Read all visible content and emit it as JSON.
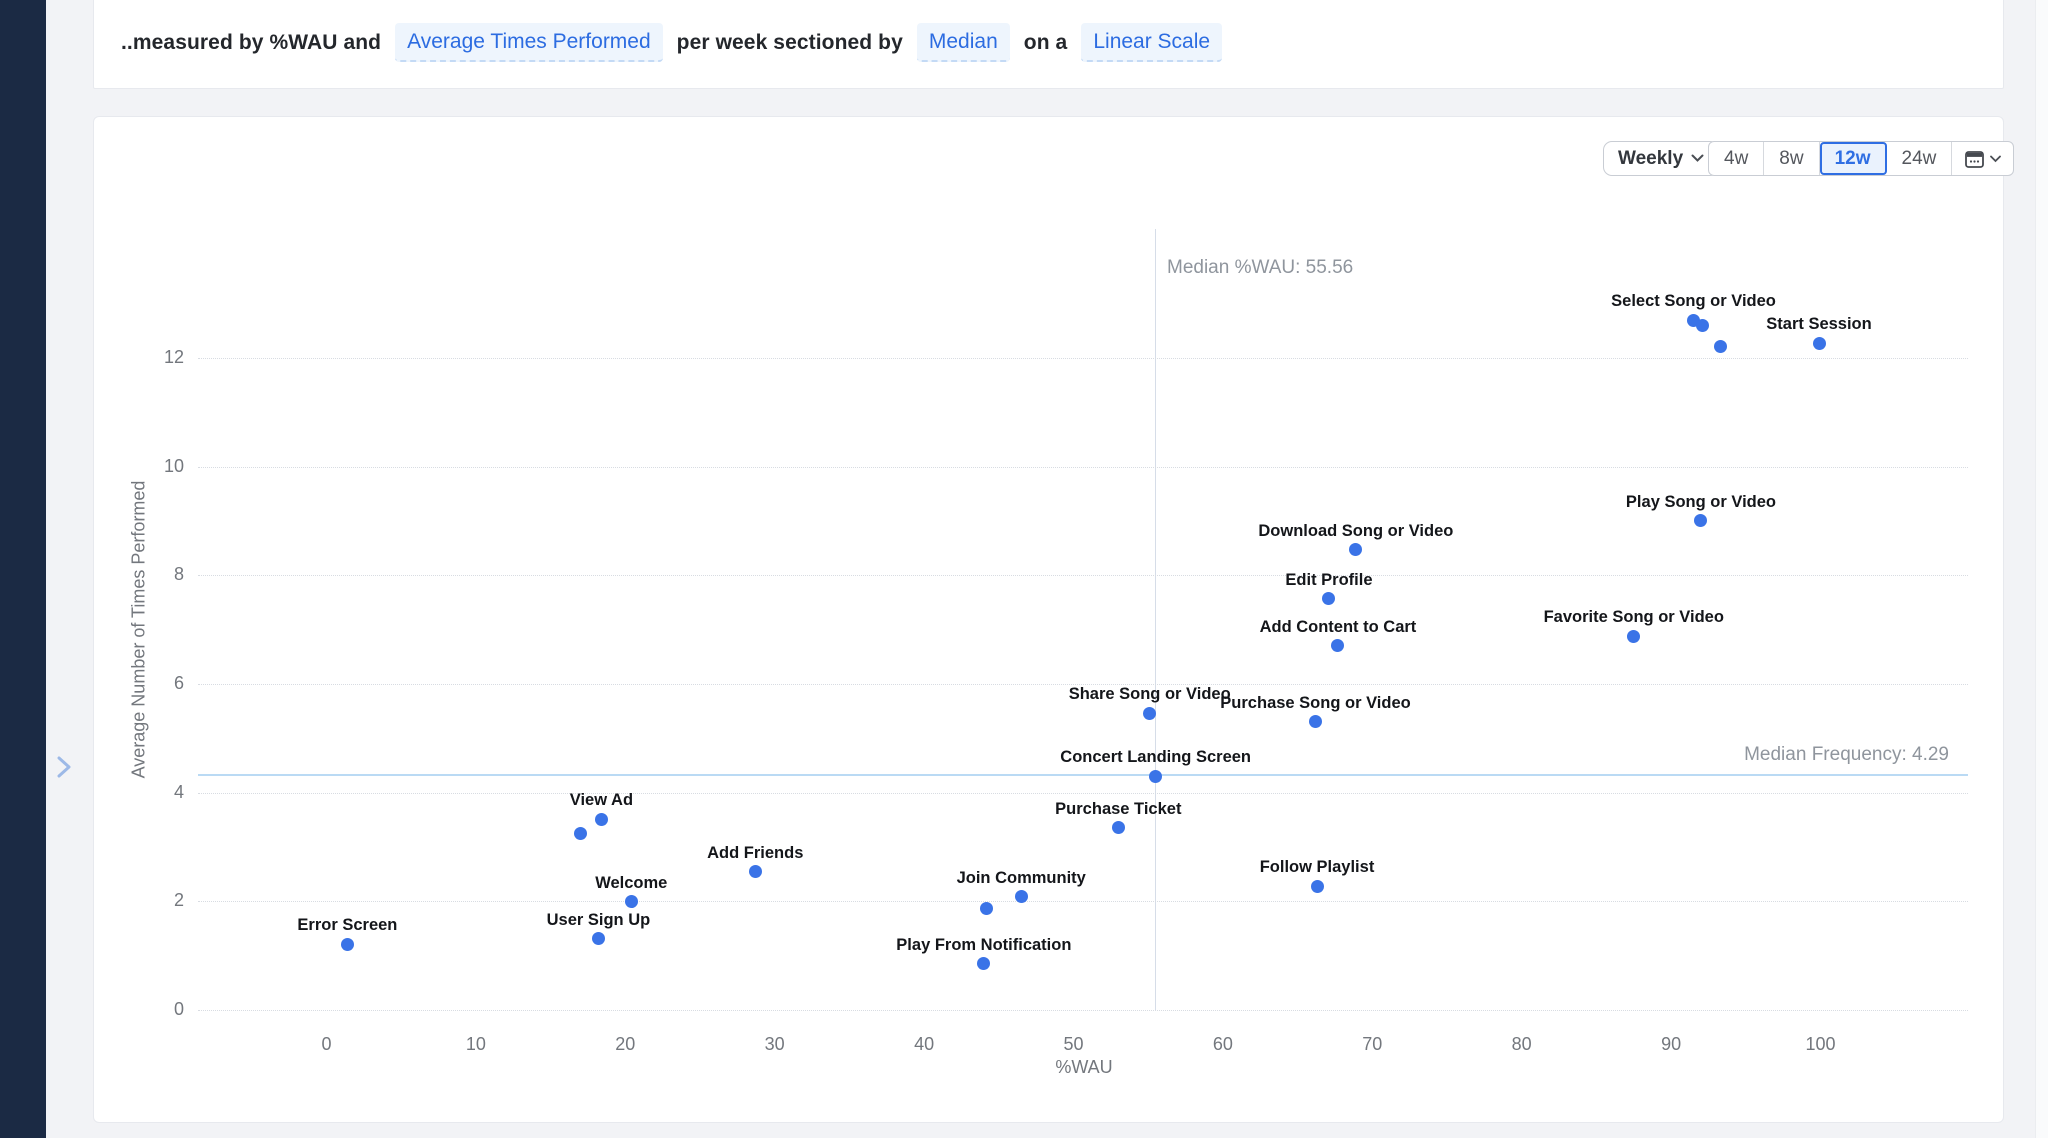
{
  "colors": {
    "accent_blue": "#2c6ce1",
    "dot_blue": "#3a73e7",
    "sidebar_navy": "#1b2a44",
    "median_line_blue": "#badaf4",
    "page_background": "#f2f3f6"
  },
  "query_bar": {
    "parts": [
      {
        "type": "text",
        "value": "..measured by %WAU and"
      },
      {
        "type": "token",
        "value": "Average Times Performed"
      },
      {
        "type": "text",
        "value": "per week sectioned by"
      },
      {
        "type": "token",
        "value": "Median"
      },
      {
        "type": "text",
        "value": "on a"
      },
      {
        "type": "token",
        "value": "Linear Scale"
      }
    ]
  },
  "controls": {
    "interval_label": "Weekly",
    "ranges": [
      "4w",
      "8w",
      "12w",
      "24w"
    ],
    "selected_range": "12w"
  },
  "chart_data": {
    "type": "scatter",
    "xlabel": "%WAU",
    "ylabel": "Average Number of Times Performed",
    "x_ticks": [
      0,
      10,
      20,
      30,
      40,
      50,
      60,
      70,
      80,
      90,
      100
    ],
    "y_ticks": [
      0,
      2,
      4,
      6,
      8,
      10,
      12
    ],
    "xlim": [
      0,
      100
    ],
    "ylim": [
      0,
      12
    ],
    "grid": "dotted-horizontal",
    "median_x": {
      "label": "Median %WAU: 55.56",
      "value": 55.56
    },
    "median_y": {
      "label": "Median Frequency: 4.29",
      "value": 4.29
    },
    "points": [
      {
        "label": "Select Song or Video",
        "x": 91.5,
        "y": 12.69
      },
      {
        "label": null,
        "x": 92.1,
        "y": 12.6
      },
      {
        "label": null,
        "x": 93.3,
        "y": 12.2
      },
      {
        "label": "Start Session",
        "x": 99.9,
        "y": 12.27
      },
      {
        "label": "Play Song or Video",
        "x": 92.0,
        "y": 9.0
      },
      {
        "label": "Download Song or Video",
        "x": 68.9,
        "y": 8.47
      },
      {
        "label": "Edit Profile",
        "x": 67.1,
        "y": 7.57
      },
      {
        "label": "Add Content to Cart",
        "x": 67.7,
        "y": 6.7
      },
      {
        "label": "Favorite Song or Video",
        "x": 87.5,
        "y": 6.88
      },
      {
        "label": "Share Song or Video",
        "x": 55.1,
        "y": 5.46
      },
      {
        "label": "Purchase Song or Video",
        "x": 66.2,
        "y": 5.3
      },
      {
        "label": "Concert Landing Screen",
        "x": 55.5,
        "y": 4.3
      },
      {
        "label": "Purchase Ticket",
        "x": 53.0,
        "y": 3.35
      },
      {
        "label": "Follow Playlist",
        "x": 66.3,
        "y": 2.28
      },
      {
        "label": "View Ad",
        "x": 18.4,
        "y": 3.51
      },
      {
        "label": null,
        "x": 17.0,
        "y": 3.24
      },
      {
        "label": "Add Friends",
        "x": 28.7,
        "y": 2.54
      },
      {
        "label": "Welcome",
        "x": 20.4,
        "y": 1.99
      },
      {
        "label": "Join Community",
        "x": 46.5,
        "y": 2.08
      },
      {
        "label": null,
        "x": 44.2,
        "y": 1.86
      },
      {
        "label": "User Sign Up",
        "x": 18.2,
        "y": 1.31
      },
      {
        "label": "Play From Notification",
        "x": 44.0,
        "y": 0.85
      },
      {
        "label": "Error Screen",
        "x": 1.4,
        "y": 1.21
      }
    ]
  }
}
